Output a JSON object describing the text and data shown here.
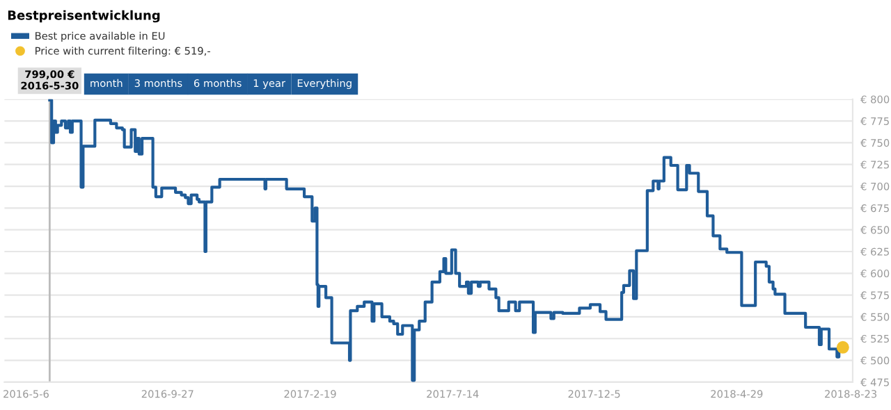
{
  "chart_data": {
    "type": "step",
    "title": "Bestpreisentwicklung",
    "annotations": [
      "month",
      "3 months",
      "6 months",
      "1 year",
      "Everything"
    ],
    "series": [
      {
        "name": "Best price available in EU",
        "color": "#1f5c99",
        "x": [
          "2016-05-30",
          "2016-06-01",
          "2016-06-03",
          "2016-06-05",
          "2016-06-07",
          "2016-06-11",
          "2016-06-15",
          "2016-06-18",
          "2016-06-20",
          "2016-06-22",
          "2016-07-01",
          "2016-07-03",
          "2016-07-15",
          "2016-07-31",
          "2016-08-06",
          "2016-08-12",
          "2016-08-14",
          "2016-08-21",
          "2016-08-25",
          "2016-08-27",
          "2016-08-29",
          "2016-09-01",
          "2016-09-12",
          "2016-09-15",
          "2016-09-21",
          "2016-10-05",
          "2016-10-11",
          "2016-10-15",
          "2016-10-18",
          "2016-10-21",
          "2016-10-27",
          "2016-10-29",
          "2016-11-04",
          "2016-11-05",
          "2016-11-11",
          "2016-11-19",
          "2017-01-04",
          "2017-01-05",
          "2017-01-26",
          "2017-02-13",
          "2017-02-21",
          "2017-02-24",
          "2017-02-26",
          "2017-02-27",
          "2017-02-28",
          "2017-03-07",
          "2017-03-13",
          "2017-03-31",
          "2017-04-01",
          "2017-04-08",
          "2017-04-15",
          "2017-04-23",
          "2017-04-25",
          "2017-05-03",
          "2017-05-11",
          "2017-05-15",
          "2017-05-19",
          "2017-05-24",
          "2017-06-03",
          "2017-06-05",
          "2017-06-10",
          "2017-06-16",
          "2017-06-23",
          "2017-07-01",
          "2017-07-05",
          "2017-07-07",
          "2017-07-13",
          "2017-07-17",
          "2017-07-21",
          "2017-07-28",
          "2017-07-30",
          "2017-08-02",
          "2017-08-09",
          "2017-08-11",
          "2017-08-20",
          "2017-08-27",
          "2017-08-30",
          "2017-09-09",
          "2017-09-16",
          "2017-09-20",
          "2017-10-04",
          "2017-10-06",
          "2017-10-22",
          "2017-10-25",
          "2017-11-03",
          "2017-11-20",
          "2017-12-01",
          "2017-12-11",
          "2017-12-17",
          "2018-01-02",
          "2018-01-04",
          "2018-01-10",
          "2018-01-14",
          "2018-01-17",
          "2018-01-28",
          "2018-02-03",
          "2018-02-08",
          "2018-02-09",
          "2018-02-14",
          "2018-02-21",
          "2018-02-28",
          "2018-03-09",
          "2018-03-12",
          "2018-03-21",
          "2018-03-30",
          "2018-04-05",
          "2018-04-12",
          "2018-04-19",
          "2018-05-04",
          "2018-05-18",
          "2018-05-29",
          "2018-06-01",
          "2018-06-05",
          "2018-06-07",
          "2018-06-17",
          "2018-07-08",
          "2018-07-22",
          "2018-07-24",
          "2018-08-01",
          "2018-08-09",
          "2018-08-11",
          "2018-08-13"
        ],
        "values": [
          799,
          750,
          775,
          762,
          770,
          775,
          767,
          775,
          762,
          775,
          699,
          746,
          776,
          772,
          767,
          765,
          745,
          765,
          740,
          755,
          737,
          755,
          699,
          688,
          698,
          693,
          690,
          687,
          680,
          690,
          685,
          682,
          625,
          682,
          699,
          708,
          697,
          708,
          697,
          688,
          660,
          675,
          587,
          562,
          585,
          572,
          520,
          500,
          557,
          562,
          567,
          545,
          565,
          550,
          545,
          542,
          530,
          540,
          477,
          535,
          545,
          567,
          590,
          602,
          617,
          600,
          627,
          600,
          585,
          590,
          577,
          590,
          585,
          590,
          582,
          572,
          557,
          567,
          557,
          567,
          532,
          555,
          548,
          555,
          554,
          560,
          564,
          556,
          547,
          578,
          586,
          603,
          571,
          626,
          695,
          706,
          697,
          706,
          733,
          724,
          696,
          724,
          715,
          694,
          666,
          643,
          628,
          624,
          563,
          613,
          608,
          590,
          582,
          576,
          554,
          538,
          518,
          536,
          513,
          504,
          513,
          513
        ]
      },
      {
        "name": "Price with current filtering: € 519,-",
        "type": "scatter",
        "color": "#f2c12e",
        "x": [
          "2018-08-15"
        ],
        "values": [
          515
        ]
      }
    ],
    "xlim": [
      "2016-04-14",
      "2018-08-25"
    ],
    "xticks": [
      {
        "value": "2016-05-06",
        "label": "2016-5-6"
      },
      {
        "value": "2016-09-27",
        "label": "2016-9-27"
      },
      {
        "value": "2017-02-19",
        "label": "2017-2-19"
      },
      {
        "value": "2017-07-14",
        "label": "2017-7-14"
      },
      {
        "value": "2017-12-05",
        "label": "2017-12-5"
      },
      {
        "value": "2018-04-29",
        "label": "2018-4-29"
      },
      {
        "value": "2018-08-23",
        "label": "2018-8-23"
      }
    ],
    "ylim": [
      475,
      800
    ],
    "yticks": [
      {
        "value": 475,
        "label": "€ 475"
      },
      {
        "value": 500,
        "label": "€ 500"
      },
      {
        "value": 525,
        "label": "€ 525"
      },
      {
        "value": 550,
        "label": "€ 550"
      },
      {
        "value": 575,
        "label": "€ 575"
      },
      {
        "value": 600,
        "label": "€ 600"
      },
      {
        "value": 625,
        "label": "€ 625"
      },
      {
        "value": 650,
        "label": "€ 650"
      },
      {
        "value": 675,
        "label": "€ 675"
      },
      {
        "value": 700,
        "label": "€ 700"
      },
      {
        "value": 725,
        "label": "€ 725"
      },
      {
        "value": 750,
        "label": "€ 750"
      },
      {
        "value": 775,
        "label": "€ 775"
      },
      {
        "value": 800,
        "label": "€ 800"
      }
    ],
    "ref_lines": [
      {
        "axis": "x",
        "value": "2016-05-30",
        "label": "799,00 €\n2016-5-30",
        "color": "#bbbbbb"
      }
    ],
    "grid": "y",
    "legend": "top left",
    "line_style": "solid"
  }
}
